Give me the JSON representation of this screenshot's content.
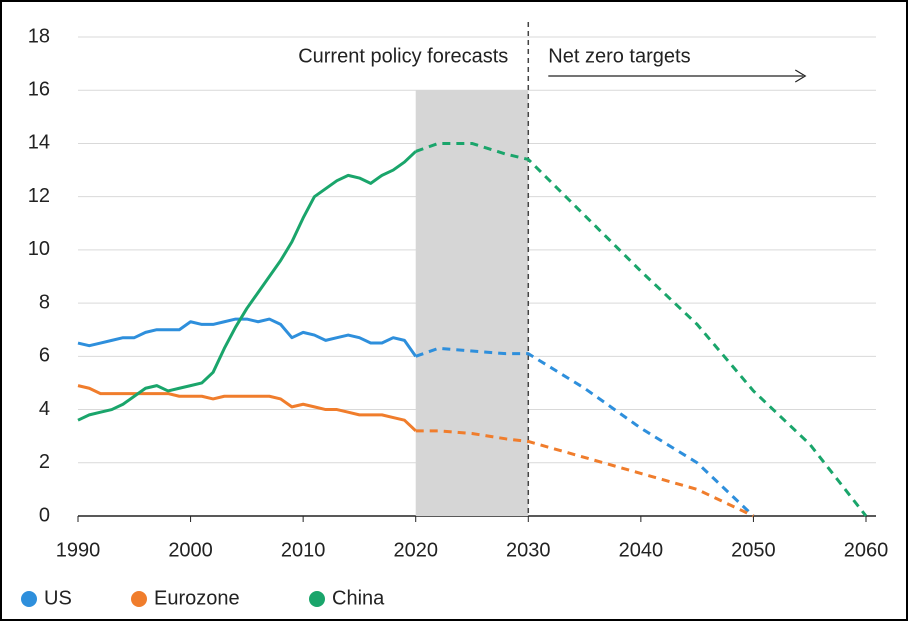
{
  "chart_data": {
    "type": "line",
    "x": [
      1990,
      1991,
      1992,
      1993,
      1994,
      1995,
      1996,
      1997,
      1998,
      1999,
      2000,
      2001,
      2002,
      2003,
      2004,
      2005,
      2006,
      2007,
      2008,
      2009,
      2010,
      2011,
      2012,
      2013,
      2014,
      2015,
      2016,
      2017,
      2018,
      2019,
      2020,
      2022,
      2025,
      2028,
      2030,
      2035,
      2040,
      2045,
      2050,
      2055,
      2060
    ],
    "series": [
      {
        "name": "US",
        "color": "#2e8fdc",
        "values": [
          6.5,
          6.4,
          6.5,
          6.6,
          6.7,
          6.7,
          6.9,
          7.0,
          7.0,
          7.0,
          7.3,
          7.2,
          7.2,
          7.3,
          7.4,
          7.4,
          7.3,
          7.4,
          7.2,
          6.7,
          6.9,
          6.8,
          6.6,
          6.7,
          6.8,
          6.7,
          6.5,
          6.5,
          6.7,
          6.6,
          6.0,
          6.3,
          6.2,
          6.1,
          6.1,
          4.8,
          3.3,
          2.0,
          0,
          null,
          null
        ]
      },
      {
        "name": "Eurozone",
        "color": "#f07d2c",
        "values": [
          4.9,
          4.8,
          4.6,
          4.6,
          4.6,
          4.6,
          4.6,
          4.6,
          4.6,
          4.5,
          4.5,
          4.5,
          4.4,
          4.5,
          4.5,
          4.5,
          4.5,
          4.5,
          4.4,
          4.1,
          4.2,
          4.1,
          4.0,
          4.0,
          3.9,
          3.8,
          3.8,
          3.8,
          3.7,
          3.6,
          3.2,
          3.2,
          3.1,
          2.9,
          2.8,
          2.2,
          1.6,
          1.0,
          0,
          null,
          null
        ]
      },
      {
        "name": "China",
        "color": "#1aa56b",
        "values": [
          3.6,
          3.8,
          3.9,
          4.0,
          4.2,
          4.5,
          4.8,
          4.9,
          4.7,
          4.8,
          4.9,
          5.0,
          5.4,
          6.3,
          7.1,
          7.8,
          8.4,
          9.0,
          9.6,
          10.3,
          11.2,
          12.0,
          12.3,
          12.6,
          12.8,
          12.7,
          12.5,
          12.8,
          13.0,
          13.3,
          13.7,
          14.0,
          14.0,
          13.6,
          13.4,
          11.3,
          9.2,
          7.2,
          4.7,
          2.7,
          0
        ]
      }
    ],
    "dashed_from": 2020,
    "forecast_band": {
      "x": [
        2020,
        2030
      ],
      "top": 16
    },
    "vline": 2030,
    "annotations": [
      "Current policy forecasts",
      "Net zero targets"
    ],
    "xlim": [
      1990,
      2060
    ],
    "xticks": [
      1990,
      2000,
      2010,
      2020,
      2030,
      2040,
      2050,
      2060
    ],
    "ylim": [
      0,
      18
    ],
    "yticks": [
      0,
      2,
      4,
      6,
      8,
      10,
      12,
      14,
      16,
      18
    ],
    "grid": true,
    "legend": "bottom"
  }
}
